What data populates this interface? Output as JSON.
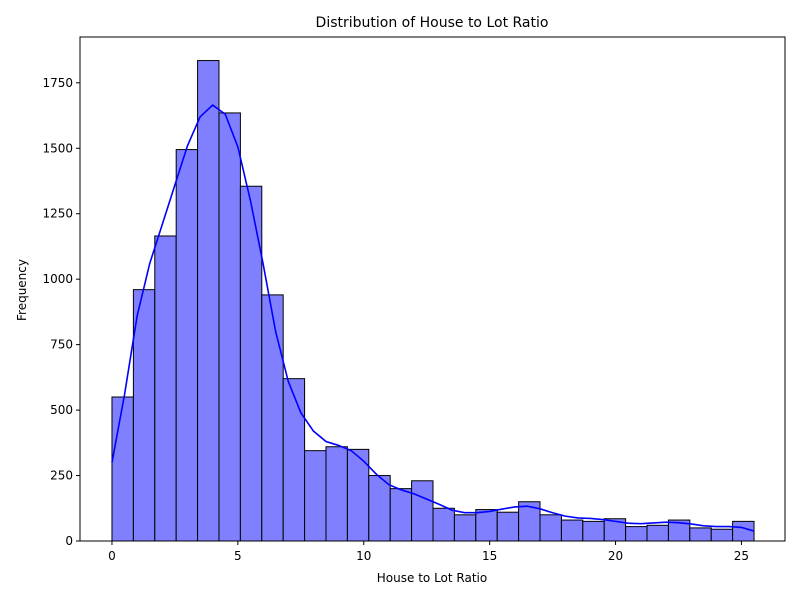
{
  "chart_data": {
    "type": "bar",
    "subtype": "histogram",
    "title": "Distribution of House to Lot Ratio",
    "xlabel": "House to Lot Ratio",
    "ylabel": "Frequency",
    "xlim": [
      -1.27,
      26.73
    ],
    "ylim": [
      0,
      1925
    ],
    "xticks": [
      0,
      5,
      10,
      15,
      20,
      25
    ],
    "yticks": [
      0,
      250,
      500,
      750,
      1000,
      1250,
      1500,
      1750
    ],
    "grid": false,
    "legend": "none",
    "bin_start": 0,
    "bin_width": 0.85,
    "bin_count": 30,
    "values": [
      550,
      960,
      1165,
      1495,
      1835,
      1635,
      1355,
      940,
      620,
      345,
      360,
      350,
      250,
      200,
      230,
      125,
      100,
      120,
      110,
      150,
      100,
      80,
      75,
      85,
      55,
      60,
      80,
      50,
      45,
      75
    ],
    "kde": {
      "x": [
        0,
        0.5,
        1,
        1.5,
        2,
        2.5,
        3,
        3.5,
        4,
        4.5,
        5,
        5.5,
        6,
        6.5,
        7,
        7.5,
        8,
        8.5,
        9,
        9.5,
        10,
        10.5,
        11,
        11.5,
        12,
        12.5,
        13,
        13.5,
        14,
        14.5,
        15,
        15.5,
        16,
        16.5,
        17,
        17.5,
        18,
        18.5,
        19,
        19.5,
        20,
        20.5,
        21,
        21.5,
        22,
        22.5,
        23,
        23.5,
        24,
        24.5,
        25,
        25.5
      ],
      "y": [
        300,
        560,
        860,
        1060,
        1210,
        1360,
        1510,
        1620,
        1665,
        1630,
        1505,
        1300,
        1060,
        800,
        610,
        490,
        420,
        380,
        365,
        345,
        305,
        255,
        215,
        195,
        180,
        160,
        140,
        118,
        108,
        108,
        113,
        122,
        130,
        133,
        123,
        108,
        95,
        88,
        86,
        82,
        75,
        68,
        66,
        69,
        72,
        70,
        65,
        58,
        55,
        55,
        52,
        38
      ]
    },
    "colors": {
      "bar_fill": "#8080ff",
      "bar_edge": "#000000",
      "kde_line": "#0000ff"
    }
  }
}
